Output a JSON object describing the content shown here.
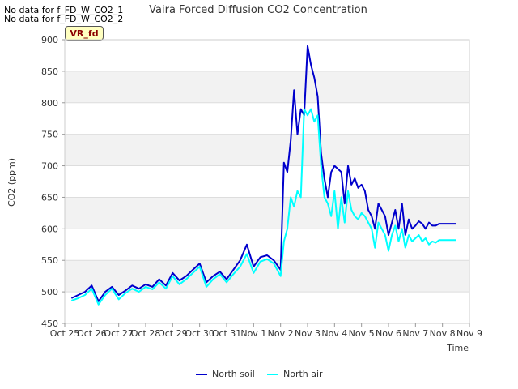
{
  "notes": [
    "No data for f_FD_W_CO2_1",
    "No data for f_FD_W_CO2_2"
  ],
  "badge": "VR_fd",
  "colors": {
    "north_soil": "#0000cc",
    "north_air": "#00ffff",
    "band": "#f2f2f2",
    "grid": "#dddddd"
  },
  "chart_data": {
    "type": "line",
    "title": "Vaira Forced Diffusion CO2 Concentration",
    "xlabel": "Time",
    "ylabel": "CO2 (ppm)",
    "xlim": [
      "2024-10-25",
      "2024-11-09"
    ],
    "ylim": [
      450,
      900
    ],
    "x_ticks": [
      "Oct 25",
      "Oct 26",
      "Oct 27",
      "Oct 28",
      "Oct 29",
      "Oct 30",
      "Oct 31",
      "Nov 1",
      "Nov 2",
      "Nov 3",
      "Nov 4",
      "Nov 5",
      "Nov 6",
      "Nov 7",
      "Nov 8",
      "Nov 9"
    ],
    "y_ticks": [
      450,
      500,
      550,
      600,
      650,
      700,
      750,
      800,
      850,
      900
    ],
    "grid": true,
    "legend_position": "bottom-center",
    "series": [
      {
        "name": "North soil",
        "color": "#0000cc",
        "x": [
          "2024-10-25T06:00",
          "2024-10-25T12:00",
          "2024-10-25T18:00",
          "2024-10-26T00:00",
          "2024-10-26T06:00",
          "2024-10-26T12:00",
          "2024-10-26T18:00",
          "2024-10-27T00:00",
          "2024-10-27T06:00",
          "2024-10-27T12:00",
          "2024-10-27T18:00",
          "2024-10-28T00:00",
          "2024-10-28T06:00",
          "2024-10-28T12:00",
          "2024-10-28T18:00",
          "2024-10-29T00:00",
          "2024-10-29T06:00",
          "2024-10-29T12:00",
          "2024-10-29T18:00",
          "2024-10-30T00:00",
          "2024-10-30T06:00",
          "2024-10-30T12:00",
          "2024-10-30T18:00",
          "2024-10-31T00:00",
          "2024-10-31T06:00",
          "2024-10-31T12:00",
          "2024-10-31T18:00",
          "2024-11-01T00:00",
          "2024-11-01T06:00",
          "2024-11-01T12:00",
          "2024-11-01T18:00",
          "2024-11-02T00:00",
          "2024-11-02T03:00",
          "2024-11-02T06:00",
          "2024-11-02T09:00",
          "2024-11-02T12:00",
          "2024-11-02T15:00",
          "2024-11-02T18:00",
          "2024-11-02T21:00",
          "2024-11-03T00:00",
          "2024-11-03T03:00",
          "2024-11-03T06:00",
          "2024-11-03T09:00",
          "2024-11-03T12:00",
          "2024-11-03T15:00",
          "2024-11-03T18:00",
          "2024-11-03T21:00",
          "2024-11-04T00:00",
          "2024-11-04T03:00",
          "2024-11-04T06:00",
          "2024-11-04T09:00",
          "2024-11-04T12:00",
          "2024-11-04T15:00",
          "2024-11-04T18:00",
          "2024-11-04T21:00",
          "2024-11-05T00:00",
          "2024-11-05T03:00",
          "2024-11-05T06:00",
          "2024-11-05T09:00",
          "2024-11-05T12:00",
          "2024-11-05T15:00",
          "2024-11-05T18:00",
          "2024-11-05T21:00",
          "2024-11-06T00:00",
          "2024-11-06T03:00",
          "2024-11-06T06:00",
          "2024-11-06T09:00",
          "2024-11-06T12:00",
          "2024-11-06T15:00",
          "2024-11-06T18:00",
          "2024-11-06T21:00",
          "2024-11-07T00:00",
          "2024-11-07T03:00",
          "2024-11-07T06:00",
          "2024-11-07T09:00",
          "2024-11-07T12:00",
          "2024-11-07T15:00",
          "2024-11-07T18:00",
          "2024-11-07T21:00",
          "2024-11-08T00:00",
          "2024-11-08T03:00",
          "2024-11-08T06:00",
          "2024-11-08T09:00",
          "2024-11-08T12:00"
        ],
        "values": [
          490,
          495,
          500,
          510,
          485,
          500,
          508,
          495,
          502,
          510,
          505,
          512,
          508,
          520,
          510,
          530,
          518,
          525,
          535,
          545,
          515,
          525,
          532,
          520,
          535,
          550,
          575,
          540,
          555,
          558,
          550,
          535,
          705,
          690,
          740,
          820,
          750,
          790,
          780,
          890,
          860,
          840,
          810,
          720,
          680,
          650,
          690,
          700,
          695,
          690,
          640,
          700,
          670,
          680,
          665,
          670,
          660,
          630,
          620,
          600,
          640,
          630,
          620,
          590,
          610,
          630,
          600,
          640,
          590,
          615,
          600,
          605,
          612,
          608,
          600,
          610,
          605,
          605,
          608,
          608,
          608,
          608,
          608,
          608
        ]
      },
      {
        "name": "North air",
        "color": "#00ffff",
        "x": [
          "2024-10-25T06:00",
          "2024-10-25T12:00",
          "2024-10-25T18:00",
          "2024-10-26T00:00",
          "2024-10-26T06:00",
          "2024-10-26T12:00",
          "2024-10-26T18:00",
          "2024-10-27T00:00",
          "2024-10-27T06:00",
          "2024-10-27T12:00",
          "2024-10-27T18:00",
          "2024-10-28T00:00",
          "2024-10-28T06:00",
          "2024-10-28T12:00",
          "2024-10-28T18:00",
          "2024-10-29T00:00",
          "2024-10-29T06:00",
          "2024-10-29T12:00",
          "2024-10-29T18:00",
          "2024-10-30T00:00",
          "2024-10-30T06:00",
          "2024-10-30T12:00",
          "2024-10-30T18:00",
          "2024-10-31T00:00",
          "2024-10-31T06:00",
          "2024-10-31T12:00",
          "2024-10-31T18:00",
          "2024-11-01T00:00",
          "2024-11-01T06:00",
          "2024-11-01T12:00",
          "2024-11-01T18:00",
          "2024-11-02T00:00",
          "2024-11-02T03:00",
          "2024-11-02T06:00",
          "2024-11-02T09:00",
          "2024-11-02T12:00",
          "2024-11-02T15:00",
          "2024-11-02T18:00",
          "2024-11-02T21:00",
          "2024-11-03T00:00",
          "2024-11-03T03:00",
          "2024-11-03T06:00",
          "2024-11-03T09:00",
          "2024-11-03T12:00",
          "2024-11-03T15:00",
          "2024-11-03T18:00",
          "2024-11-03T21:00",
          "2024-11-04T00:00",
          "2024-11-04T03:00",
          "2024-11-04T06:00",
          "2024-11-04T09:00",
          "2024-11-04T12:00",
          "2024-11-04T15:00",
          "2024-11-04T18:00",
          "2024-11-04T21:00",
          "2024-11-05T00:00",
          "2024-11-05T03:00",
          "2024-11-05T06:00",
          "2024-11-05T09:00",
          "2024-11-05T12:00",
          "2024-11-05T15:00",
          "2024-11-05T18:00",
          "2024-11-05T21:00",
          "2024-11-06T00:00",
          "2024-11-06T03:00",
          "2024-11-06T06:00",
          "2024-11-06T09:00",
          "2024-11-06T12:00",
          "2024-11-06T15:00",
          "2024-11-06T18:00",
          "2024-11-06T21:00",
          "2024-11-07T00:00",
          "2024-11-07T03:00",
          "2024-11-07T06:00",
          "2024-11-07T09:00",
          "2024-11-07T12:00",
          "2024-11-07T15:00",
          "2024-11-07T18:00",
          "2024-11-07T21:00",
          "2024-11-08T00:00",
          "2024-11-08T03:00",
          "2024-11-08T06:00",
          "2024-11-08T09:00",
          "2024-11-08T12:00"
        ],
        "values": [
          486,
          490,
          495,
          505,
          480,
          495,
          505,
          488,
          498,
          505,
          500,
          508,
          504,
          515,
          505,
          525,
          512,
          520,
          530,
          540,
          508,
          520,
          528,
          515,
          528,
          540,
          560,
          530,
          548,
          552,
          545,
          525,
          580,
          600,
          650,
          635,
          660,
          650,
          790,
          780,
          790,
          770,
          780,
          700,
          650,
          640,
          620,
          660,
          600,
          650,
          610,
          660,
          630,
          620,
          615,
          625,
          620,
          610,
          600,
          570,
          610,
          600,
          590,
          565,
          590,
          605,
          580,
          600,
          570,
          590,
          580,
          585,
          590,
          580,
          585,
          575,
          580,
          578,
          582,
          582,
          582,
          582,
          582,
          582
        ]
      }
    ]
  }
}
